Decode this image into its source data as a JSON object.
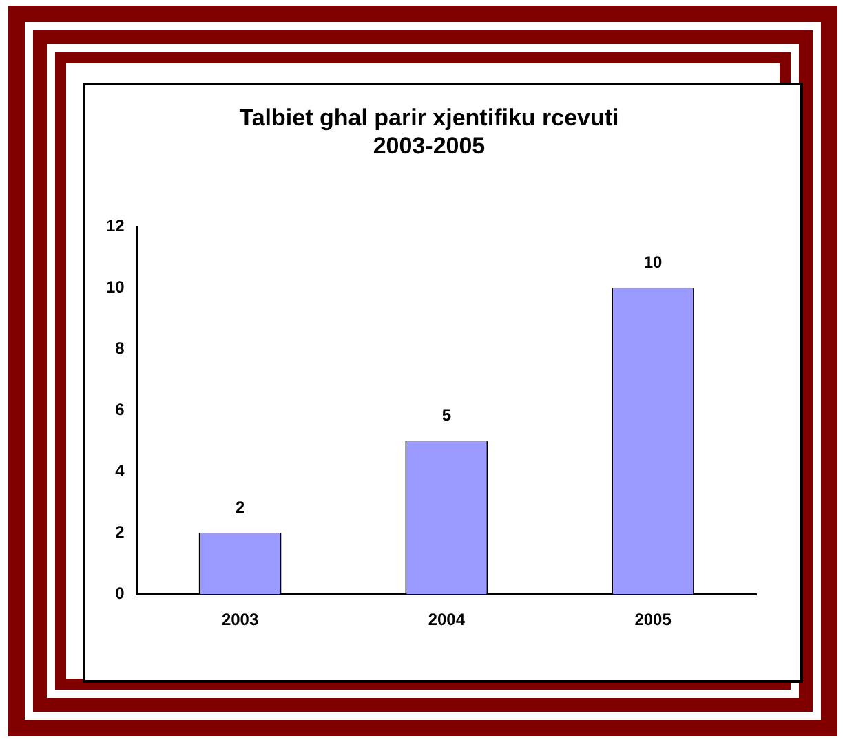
{
  "chart_data": {
    "type": "bar",
    "title": "Talbiet ghal parir xjentifiku rcevuti 2003-2005",
    "categories": [
      "2003",
      "2004",
      "2005"
    ],
    "values": [
      2,
      5,
      10
    ],
    "color": "#9999ff",
    "ylim": [
      0,
      12
    ],
    "yticks": [
      0,
      2,
      4,
      6,
      8,
      10,
      12
    ],
    "data_labels": true,
    "grid": false,
    "legend": false
  }
}
